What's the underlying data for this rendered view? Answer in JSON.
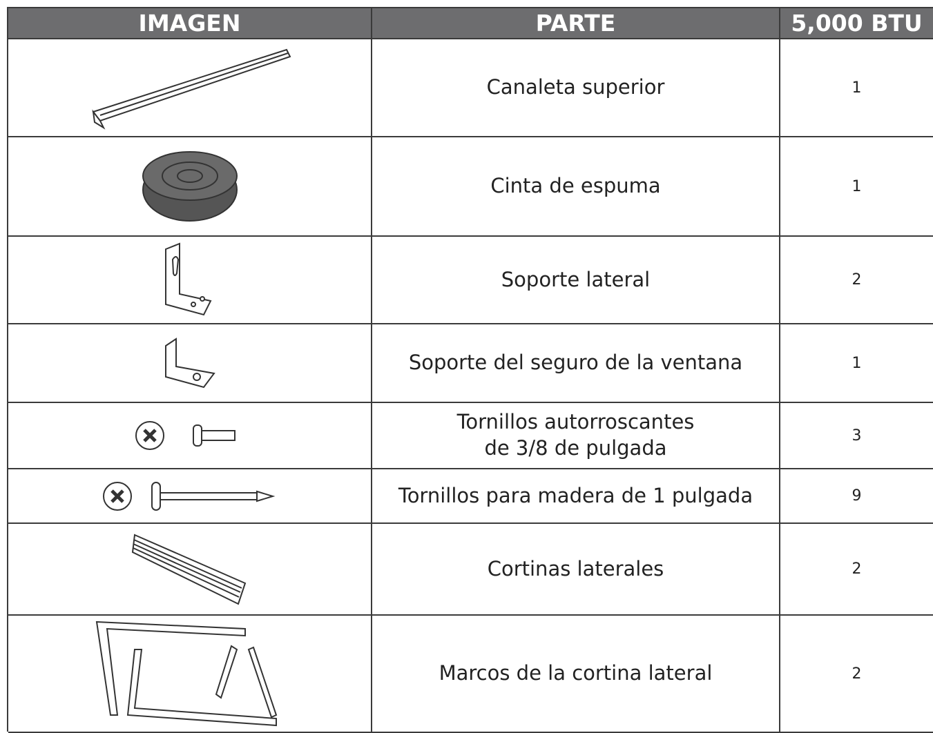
{
  "header": [
    "IMAGEN",
    "PARTE",
    "5,000 BTU"
  ],
  "rows": [
    {
      "part": "Canaleta superior",
      "quantity": 1
    },
    {
      "part": "Cinta de espuma",
      "quantity": 1
    },
    {
      "part": "Soporte lateral",
      "quantity": 2
    },
    {
      "part": "Soporte del seguro de la ventana",
      "quantity": 1
    },
    {
      "part": "Tornillos autorroscantes\nde 3/8  de pulgada",
      "quantity": 3
    },
    {
      "part": "Tornillos para madera de 1 pulgada",
      "quantity": 9
    },
    {
      "part": "Cortinas laterales",
      "quantity": 2
    },
    {
      "part": "Marcos de la cortina lateral",
      "quantity": 2
    }
  ]
}
